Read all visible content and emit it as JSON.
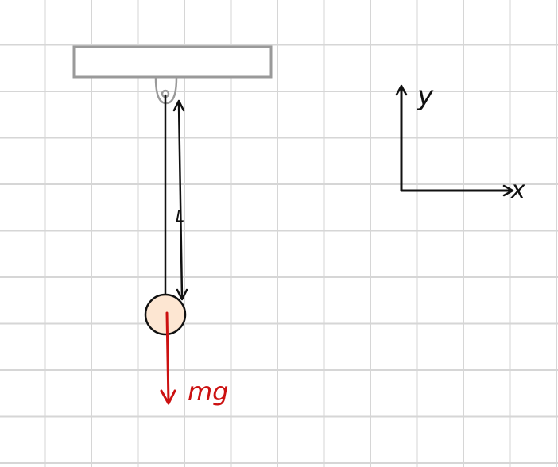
{
  "diagram": {
    "length_label": "L",
    "force_label": "mg",
    "axis_y_label": "y",
    "axis_x_label": "x",
    "colors": {
      "ceiling_stroke": "#9a9a9a",
      "ceiling_fill": "#ffffff",
      "string": "#111111",
      "bob_fill": "#fde6d2",
      "bob_stroke": "#111111",
      "force": "#cc1111",
      "axes": "#111111",
      "grid": "#d6d6d6"
    }
  }
}
